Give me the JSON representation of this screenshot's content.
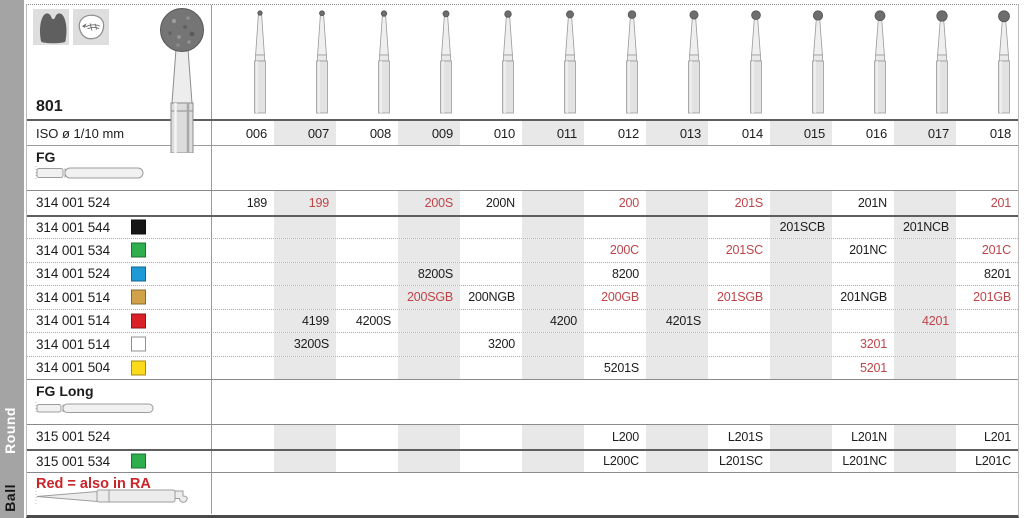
{
  "sidebar": {
    "top_label": "Round",
    "bottom_label": "Ball"
  },
  "header": {
    "figure_number": "801",
    "iso_label": "ISO ø 1/10 mm",
    "iso_sizes": [
      "006",
      "007",
      "008",
      "009",
      "010",
      "011",
      "012",
      "013",
      "014",
      "015",
      "016",
      "017",
      "018"
    ]
  },
  "icons": {
    "indication_1": "tooth-crown-icon",
    "indication_2": "tooth-occlusal-icon",
    "figure": "round-ball-bur-icon",
    "shank_fg": "fg-shank-icon",
    "shank_fg_long": "fg-long-shank-icon",
    "shank_ra": "ra-shank-icon"
  },
  "table": {
    "sections": [
      {
        "label": "FG",
        "rows": [
          {
            "code": "314 001 524",
            "swatch": null,
            "cells": [
              {
                "col": 0,
                "text": "189",
                "red": false
              },
              {
                "col": 1,
                "text": "199",
                "red": true
              },
              {
                "col": 3,
                "text": "200S",
                "red": true
              },
              {
                "col": 4,
                "text": "200N",
                "red": false
              },
              {
                "col": 6,
                "text": "200",
                "red": true
              },
              {
                "col": 8,
                "text": "201S",
                "red": true
              },
              {
                "col": 10,
                "text": "201N",
                "red": false
              },
              {
                "col": 12,
                "text": "201",
                "red": true
              }
            ]
          },
          {
            "code": "314 001 544",
            "swatch": "black",
            "cells": [
              {
                "col": 9,
                "text": "201SCB",
                "red": false
              },
              {
                "col": 11,
                "text": "201NCB",
                "red": false
              }
            ]
          },
          {
            "code": "314 001 534",
            "swatch": "green",
            "cells": [
              {
                "col": 6,
                "text": "200C",
                "red": true
              },
              {
                "col": 8,
                "text": "201SC",
                "red": true
              },
              {
                "col": 10,
                "text": "201NC",
                "red": false
              },
              {
                "col": 12,
                "text": "201C",
                "red": true
              }
            ]
          },
          {
            "code": "314 001 524",
            "swatch": "blue",
            "cells": [
              {
                "col": 3,
                "text": "8200S",
                "red": false
              },
              {
                "col": 6,
                "text": "8200",
                "red": false
              },
              {
                "col": 12,
                "text": "8201",
                "red": false
              }
            ]
          },
          {
            "code": "314 001 514",
            "swatch": "gold",
            "cells": [
              {
                "col": 3,
                "text": "200SGB",
                "red": true
              },
              {
                "col": 4,
                "text": "200NGB",
                "red": false
              },
              {
                "col": 6,
                "text": "200GB",
                "red": true
              },
              {
                "col": 8,
                "text": "201SGB",
                "red": true
              },
              {
                "col": 10,
                "text": "201NGB",
                "red": false
              },
              {
                "col": 12,
                "text": "201GB",
                "red": true
              }
            ]
          },
          {
            "code": "314 001 514",
            "swatch": "red",
            "cells": [
              {
                "col": 1,
                "text": "4199",
                "red": false
              },
              {
                "col": 2,
                "text": "4200S",
                "red": false
              },
              {
                "col": 5,
                "text": "4200",
                "red": false
              },
              {
                "col": 7,
                "text": "4201S",
                "red": false
              },
              {
                "col": 11,
                "text": "4201",
                "red": true
              }
            ]
          },
          {
            "code": "314 001 514",
            "swatch": "white",
            "cells": [
              {
                "col": 1,
                "text": "3200S",
                "red": false
              },
              {
                "col": 4,
                "text": "3200",
                "red": false
              },
              {
                "col": 10,
                "text": "3201",
                "red": true
              }
            ]
          },
          {
            "code": "314 001 504",
            "swatch": "yellow",
            "cells": [
              {
                "col": 6,
                "text": "5201S",
                "red": false
              },
              {
                "col": 10,
                "text": "5201",
                "red": true
              }
            ]
          }
        ]
      },
      {
        "label": "FG Long",
        "rows": [
          {
            "code": "315 001 524",
            "swatch": null,
            "cells": [
              {
                "col": 6,
                "text": "L200",
                "red": false
              },
              {
                "col": 8,
                "text": "L201S",
                "red": false
              },
              {
                "col": 10,
                "text": "L201N",
                "red": false
              },
              {
                "col": 12,
                "text": "L201",
                "red": false
              }
            ]
          },
          {
            "code": "315 001 534",
            "swatch": "green",
            "cells": [
              {
                "col": 6,
                "text": "L200C",
                "red": false
              },
              {
                "col": 8,
                "text": "L201SC",
                "red": false
              },
              {
                "col": 10,
                "text": "L201NC",
                "red": false
              },
              {
                "col": 12,
                "text": "L201C",
                "red": false
              }
            ]
          }
        ]
      }
    ]
  },
  "note": {
    "text": "Red = also in RA"
  },
  "colors": {
    "red_text": "#bf4449",
    "note_red": "#c9252b",
    "shade": "#e8e8e8",
    "sidebar": "#a4a4a4",
    "swatches": {
      "black": "#161616",
      "green": "#2fae4e",
      "blue": "#1f9ad7",
      "gold": "#d2a24b",
      "red": "#da2128",
      "white": "#ffffff",
      "yellow": "#fdd91c"
    }
  }
}
